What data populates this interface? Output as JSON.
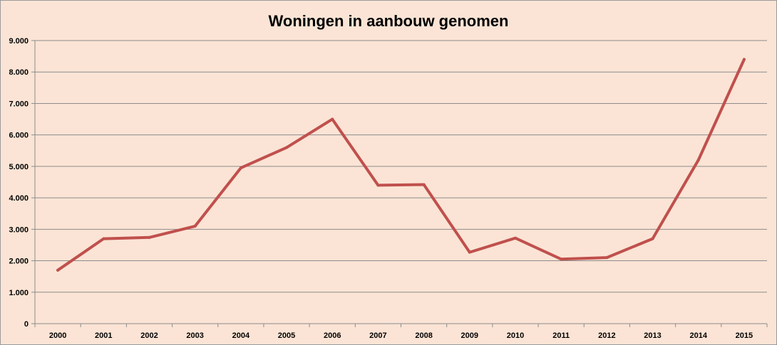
{
  "chart_data": {
    "type": "line",
    "title": "Woningen in aanbouw genomen",
    "xlabel": "",
    "ylabel": "",
    "categories": [
      "2000",
      "2001",
      "2002",
      "2003",
      "2004",
      "2005",
      "2006",
      "2007",
      "2008",
      "2009",
      "2010",
      "2011",
      "2012",
      "2013",
      "2014",
      "2015"
    ],
    "series": [
      {
        "values": [
          1700,
          2700,
          2740,
          3100,
          4950,
          5600,
          6500,
          4400,
          4420,
          2270,
          2720,
          2050,
          2100,
          2700,
          5200,
          8400
        ],
        "color": "#c0504d"
      }
    ],
    "ylim": [
      0,
      9000
    ],
    "yticks": [
      0,
      1000,
      2000,
      3000,
      4000,
      5000,
      6000,
      7000,
      8000,
      9000
    ],
    "ytick_labels": [
      "0",
      "1.000",
      "2.000",
      "3.000",
      "4.000",
      "5.000",
      "6.000",
      "7.000",
      "8.000",
      "9.000"
    ],
    "grid": true,
    "legend": "none",
    "background": "#fbe4d5"
  }
}
